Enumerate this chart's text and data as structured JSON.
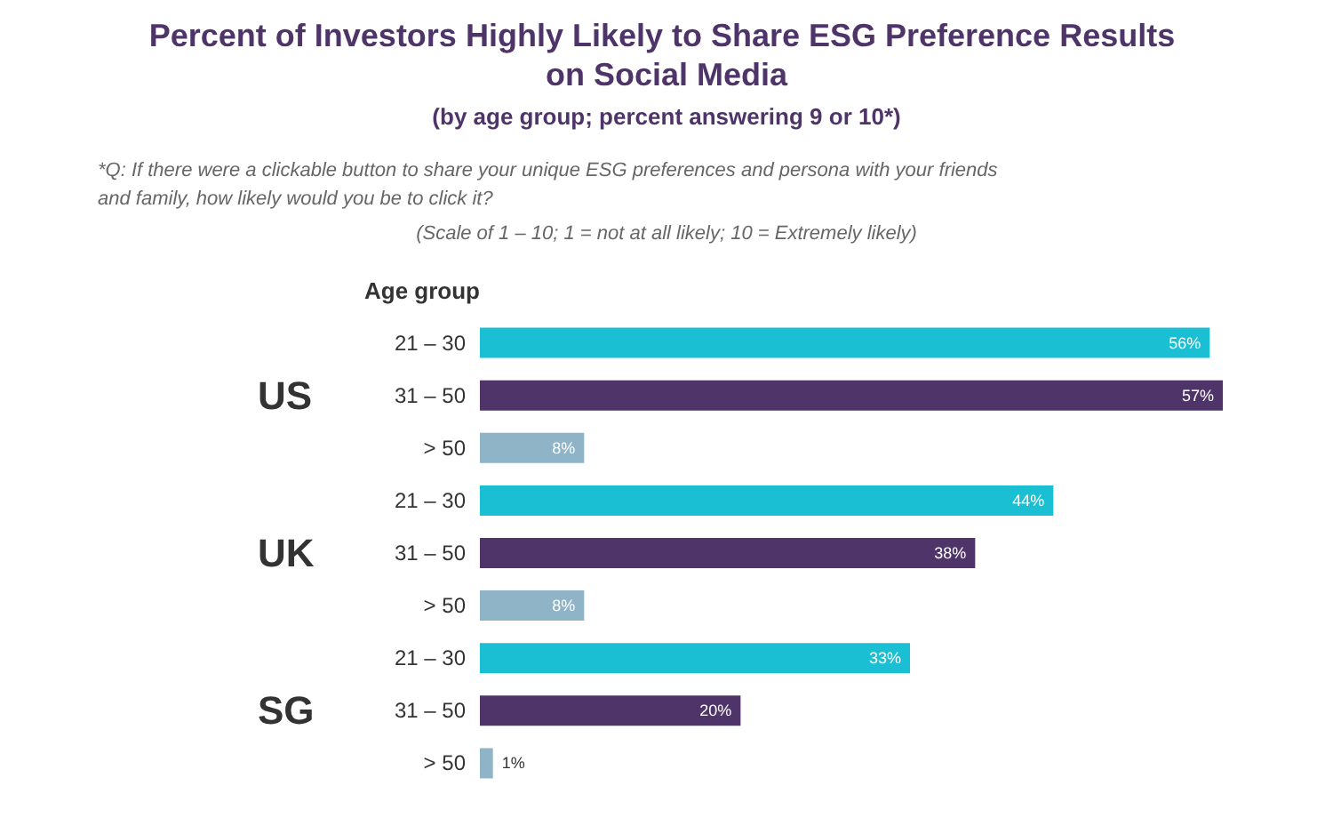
{
  "chart_data": {
    "type": "bar",
    "orientation": "horizontal",
    "title": "Percent of Investors Highly Likely to Share ESG Preference Results on Social Media",
    "subtitle": "(by age group; percent answering 9 or 10*)",
    "ylabel": "Age group",
    "annotations": [
      "*Q: If there were a clickable button to share your unique ESG preferences and persona with your friends and family, how likely would you be to click it?",
      "(Scale of 1 – 10; 1 = not at all likely; 10 = Extremely likely)",
      "US",
      "UK",
      "SG"
    ],
    "categories": [
      "21 – 30",
      "31 – 50",
      "> 50",
      "21 – 30",
      "31 – 50",
      "> 50",
      "21 – 30",
      "31 – 50",
      "> 50"
    ],
    "values": [
      56,
      57,
      8,
      44,
      38,
      8,
      33,
      20,
      1
    ],
    "colors": [
      "#1bbfd3",
      "#4e3468",
      "#8fb3c7",
      "#1bbfd3",
      "#4e3468",
      "#8fb3c7",
      "#1bbfd3",
      "#4e3468",
      "#8fb3c7"
    ],
    "value_labels": [
      "56%",
      "57%",
      "8%",
      "44%",
      "38%",
      "8%",
      "33%",
      "20%",
      "1%"
    ],
    "tick_labels": "y"
  }
}
